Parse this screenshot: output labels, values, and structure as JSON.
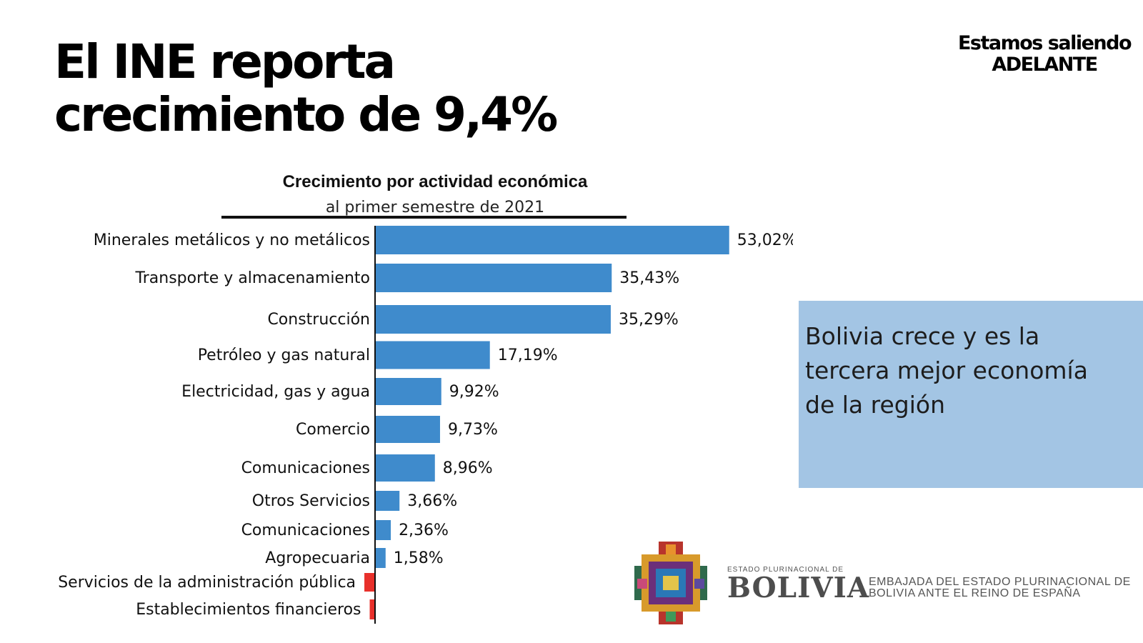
{
  "headline": {
    "line1": "El INE reporta",
    "line2": "crecimiento de 9,4%"
  },
  "slogan": {
    "line1": "Estamos saliendo",
    "line2": "ADELANTE"
  },
  "info_box": {
    "line1": "Bolivia crece y es la",
    "line2": "tercera mejor economía",
    "line3": "de la región"
  },
  "logo": {
    "small_text": "ESTADO PLURINACIONAL DE",
    "big_text": "BOLIVIA"
  },
  "embassy": {
    "line1": "EMBAJADA DEL ESTADO PLURINACIONAL DE",
    "line2": "BOLIVIA ANTE EL REINO DE ESPAÑA"
  },
  "colors": {
    "positive_bar": "#3f8bcc",
    "negative_bar": "#e8302b",
    "info_box": "#a3c5e4",
    "text": "#111111"
  },
  "chart_data": {
    "type": "bar",
    "orientation": "horizontal",
    "title": "Crecimiento por actividad económica",
    "subtitle": "al primer semestre de 2021",
    "categories": [
      "Minerales metálicos y no metálicos",
      "Transporte y almacenamiento",
      "Construcción",
      "Petróleo y gas natural",
      "Electricidad, gas y agua",
      "Comercio",
      "Comunicaciones",
      "Otros Servicios",
      "Comunicaciones",
      "Agropecuaria",
      "Servicios de la administración pública",
      "Establecimientos financieros"
    ],
    "values": [
      53.02,
      35.43,
      35.29,
      17.19,
      9.92,
      9.73,
      8.96,
      3.66,
      2.36,
      1.58,
      -1.6,
      -0.8
    ],
    "value_labels": [
      "53,02%",
      "35,43%",
      "35,29%",
      "17,19%",
      "9,92%",
      "9,73%",
      "8,96%",
      "3,66%",
      "2,36%",
      "1,58%",
      "",
      ""
    ],
    "grid": false,
    "legend": "none"
  }
}
